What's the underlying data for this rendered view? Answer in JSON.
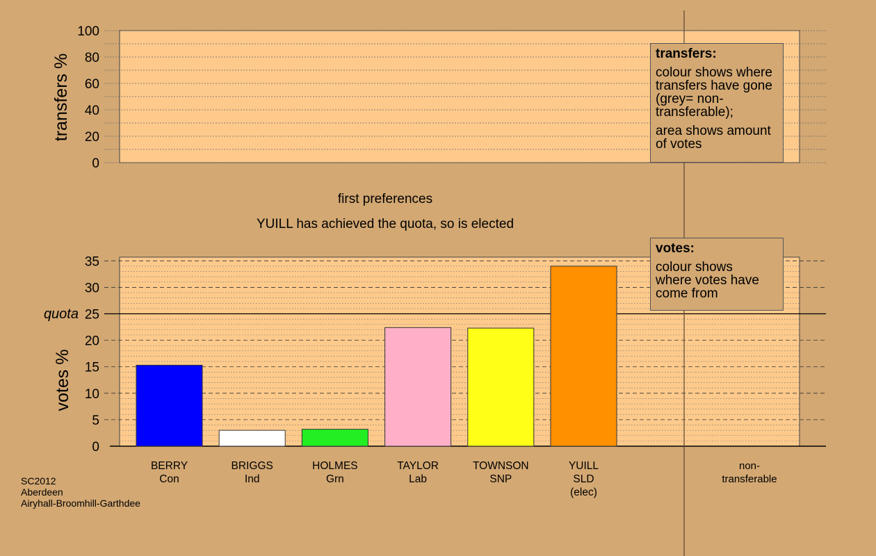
{
  "chart_data": [
    {
      "type": "bar",
      "panel": "transfers",
      "ylabel": "transfers %",
      "ylim": [
        0,
        100
      ],
      "yticks": [
        0,
        20,
        40,
        60,
        80,
        100
      ],
      "values": [],
      "legend": {
        "title": "transfers:",
        "paragraphs": [
          "colour shows where transfers have gone (grey= non-transferable);",
          "area shows amount of votes"
        ]
      }
    },
    {
      "type": "bar",
      "panel": "votes",
      "ylabel": "votes %",
      "ylim": [
        0,
        35
      ],
      "yticks": [
        0,
        5,
        10,
        15,
        20,
        25,
        30,
        35
      ],
      "quota": 25,
      "quota_label": "quota",
      "categories": [
        {
          "name": "BERRY",
          "party": "Con",
          "note": ""
        },
        {
          "name": "BRIGGS",
          "party": "Ind",
          "note": ""
        },
        {
          "name": "HOLMES",
          "party": "Grn",
          "note": ""
        },
        {
          "name": "TAYLOR",
          "party": "Lab",
          "note": ""
        },
        {
          "name": "TOWNSON",
          "party": "SNP",
          "note": ""
        },
        {
          "name": "YUILL",
          "party": "SLD",
          "note": "(elec)"
        }
      ],
      "values": [
        15.3,
        3.0,
        3.2,
        22.4,
        22.3,
        34.0
      ],
      "colors": [
        "#0000ff",
        "#ffffff",
        "#22ee22",
        "#ffb0c8",
        "#ffff18",
        "#ff9000"
      ],
      "extra_category": {
        "line1": "non-",
        "line2": "transferable"
      },
      "legend": {
        "title": "votes:",
        "paragraphs": [
          "colour shows where votes have come from"
        ]
      }
    }
  ],
  "annotations": {
    "stage": "first preferences",
    "message": "YUILL has achieved the quota, so is elected"
  },
  "footer": {
    "line1": "SC2012",
    "line2": "Aberdeen",
    "line3": "Airyhall-Broomhill-Garthdee"
  },
  "colors": {
    "background": "#d3a873",
    "plot_fill": "#fdca8c",
    "grid": "#666666",
    "divider": "#5a4630"
  }
}
